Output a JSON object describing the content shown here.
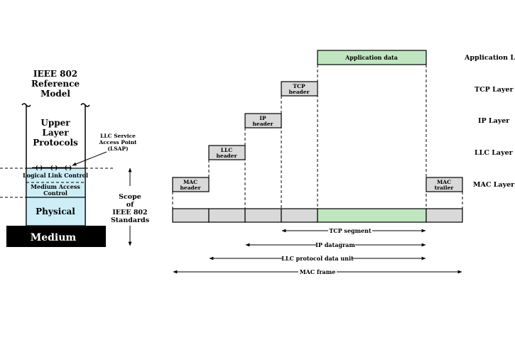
{
  "left_model": {
    "title_line1": "IEEE 802",
    "title_line2": "Reference",
    "title_line3": "Model",
    "upper_line1": "Upper",
    "upper_line2": "Layer",
    "upper_line3": "Protocols",
    "llc": "Logical Link Control",
    "mac_line1": "Medium Access",
    "mac_line2": "Control",
    "physical": "Physical",
    "medium": "Medium",
    "lsap_line1": "LLC Service",
    "lsap_line2": "Access Point",
    "lsap_line3": "(LSAP)",
    "sap_symbols": [
      "( )",
      "( )",
      "( )"
    ],
    "scope_line1": "Scope",
    "scope_line2": "of",
    "scope_line3": "IEEE 802",
    "scope_line4": "Standards"
  },
  "encapsulation": {
    "app_data": "Application data",
    "tcp_header_1": "TCP",
    "tcp_header_2": "header",
    "ip_header_1": "IP",
    "ip_header_2": "header",
    "llc_header_1": "LLC",
    "llc_header_2": "header",
    "mac_header_1": "MAC",
    "mac_header_2": "header",
    "mac_trailer_1": "MAC",
    "mac_trailer_2": "trailer",
    "layers": {
      "app": "Application Layer",
      "tcp": "TCP Layer",
      "ip": "IP Layer",
      "llc": "LLC Layer",
      "mac": "MAC Layer"
    },
    "spans": {
      "tcp_segment": "TCP segment",
      "ip_datagram": "IP datagram",
      "llc_pdu": "LLC protocol data unit",
      "mac_frame": "MAC frame"
    }
  }
}
